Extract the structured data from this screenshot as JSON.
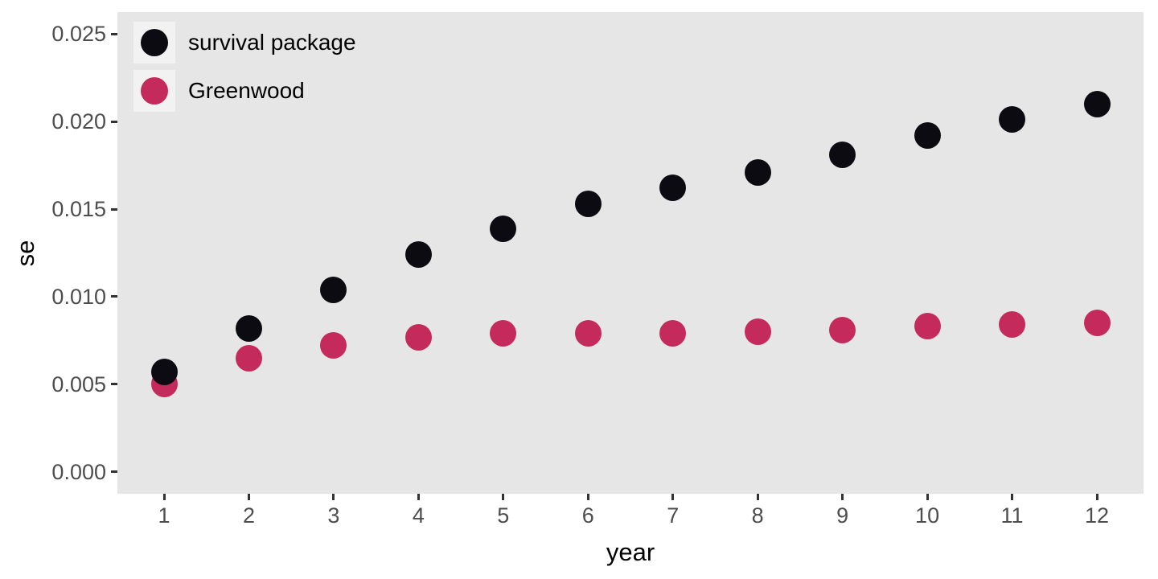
{
  "chart_data": {
    "type": "scatter",
    "x": [
      1,
      2,
      3,
      4,
      5,
      6,
      7,
      8,
      9,
      10,
      11,
      12
    ],
    "series": [
      {
        "name": "survival package",
        "color": "#0b0b11",
        "values": [
          0.0057,
          0.0082,
          0.0104,
          0.0124,
          0.0139,
          0.0153,
          0.0162,
          0.0171,
          0.0181,
          0.0192,
          0.0201,
          0.021
        ]
      },
      {
        "name": "Greenwood",
        "color": "#c42a5c",
        "values": [
          0.005,
          0.0065,
          0.0072,
          0.0077,
          0.0079,
          0.0079,
          0.0079,
          0.008,
          0.0081,
          0.0083,
          0.0084,
          0.0085
        ]
      }
    ],
    "title": "",
    "xlabel": "year",
    "ylabel": "se",
    "x_ticks": [
      1,
      2,
      3,
      4,
      5,
      6,
      7,
      8,
      9,
      10,
      11,
      12
    ],
    "x_tick_labels": [
      "1",
      "2",
      "3",
      "4",
      "5",
      "6",
      "7",
      "8",
      "9",
      "10",
      "11",
      "12"
    ],
    "y_ticks": [
      0.0,
      0.005,
      0.01,
      0.015,
      0.02,
      0.025
    ],
    "y_tick_labels": [
      "0.000",
      "0.005",
      "0.010",
      "0.015",
      "0.020",
      "0.025"
    ],
    "xlim": [
      0.45,
      12.55
    ],
    "ylim": [
      -0.00125,
      0.02625
    ],
    "grid": false,
    "legend_position": "top-left-inside",
    "colors": {
      "panel_bg": "#e6e6e6",
      "legend_key_bg": "#f2f2f2",
      "tick_label": "#4d4d4d",
      "tick_mark": "#333333",
      "axis_title": "#000000",
      "figure_bg": "#ffffff"
    }
  }
}
